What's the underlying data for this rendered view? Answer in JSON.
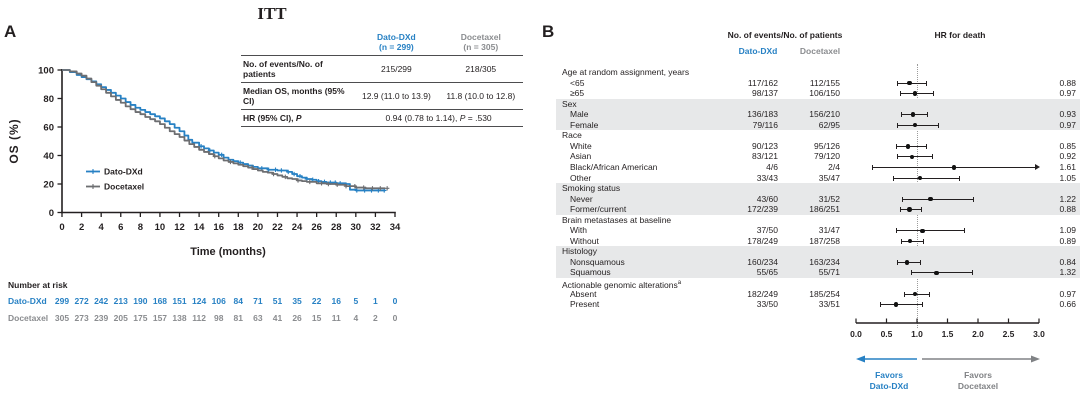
{
  "panel_a": {
    "label": "A",
    "table": {
      "col_headers": [
        {
          "line1": "Dato-DXd",
          "line2": "(n = 299)",
          "color": "#2781c4"
        },
        {
          "line1": "Docetaxel",
          "line2": "(n = 305)",
          "color": "#8a8c8f"
        }
      ],
      "rows": [
        {
          "label": "No. of events/No. of patients",
          "dato": "215/299",
          "doc": "218/305"
        },
        {
          "label": "Median OS, months (95% CI)",
          "dato": "12.9 (11.0 to 13.9)",
          "doc": "11.8 (10.0 to 12.8)"
        },
        {
          "label_prefix": "HR (95% CI), ",
          "label_p": "P",
          "value_prefix": "0.94 (0.78 to 1.14), ",
          "value_p": "P",
          "value_suffix": " = .530"
        }
      ]
    },
    "number_at_risk": {
      "title": "Number at risk",
      "times": [
        0,
        2,
        4,
        6,
        8,
        10,
        12,
        14,
        16,
        18,
        20,
        22,
        24,
        26,
        28,
        30,
        32,
        34
      ],
      "rows": [
        {
          "label": "Dato-DXd",
          "color": "#2781c4",
          "values": [
            299,
            272,
            242,
            213,
            190,
            168,
            151,
            124,
            106,
            84,
            71,
            51,
            35,
            22,
            16,
            5,
            1,
            0
          ]
        },
        {
          "label": "Docetaxel",
          "color": "#8a8c8f",
          "values": [
            305,
            273,
            239,
            205,
            175,
            157,
            138,
            112,
            98,
            81,
            63,
            41,
            26,
            15,
            11,
            4,
            2,
            0
          ]
        }
      ]
    }
  },
  "panel_b": {
    "label": "B",
    "header_events": "No. of events/No. of patients",
    "header_dato": "Dato-DXd",
    "header_doc": "Docetaxel",
    "header_hr": "HR for death",
    "favors_left": {
      "line1": "Favors",
      "line2": "Dato-DXd",
      "color": "#2781c4"
    },
    "favors_right": {
      "line1": "Favors",
      "line2": "Docetaxel",
      "color": "#808285"
    }
  },
  "chart_data": [
    {
      "type": "line",
      "subtype": "kaplan-meier",
      "title": "ITT",
      "xlabel": "Time (months)",
      "ylabel": "OS (%)",
      "xlim": [
        0,
        34
      ],
      "ylim": [
        0,
        100
      ],
      "xticks": [
        0,
        2,
        4,
        6,
        8,
        10,
        12,
        14,
        16,
        18,
        20,
        22,
        24,
        26,
        28,
        30,
        32,
        34
      ],
      "yticks": [
        0,
        20,
        40,
        60,
        80,
        100
      ],
      "legend_position": "inside-left",
      "series": [
        {
          "name": "Dato-DXd",
          "color": "#2781c4",
          "median_os_months": 12.9,
          "points": [
            [
              0,
              100
            ],
            [
              0.8,
              98.5
            ],
            [
              1.5,
              96.5
            ],
            [
              2,
              95
            ],
            [
              2.5,
              93.5
            ],
            [
              3,
              92
            ],
            [
              3.5,
              90
            ],
            [
              4,
              88
            ],
            [
              4.5,
              86
            ],
            [
              5,
              84
            ],
            [
              5.5,
              82
            ],
            [
              6,
              80
            ],
            [
              6.5,
              77.5
            ],
            [
              7,
              75.5
            ],
            [
              7.5,
              73.5
            ],
            [
              8,
              72
            ],
            [
              8.5,
              70.5
            ],
            [
              9,
              69
            ],
            [
              9.5,
              67.5
            ],
            [
              10,
              66
            ],
            [
              10.5,
              64
            ],
            [
              11,
              62
            ],
            [
              11.5,
              59.5
            ],
            [
              12,
              57
            ],
            [
              12.5,
              54
            ],
            [
              12.9,
              51
            ],
            [
              13.3,
              49
            ],
            [
              14,
              46.5
            ],
            [
              14.5,
              45
            ],
            [
              15,
              43.5
            ],
            [
              15.5,
              42
            ],
            [
              16,
              40.5
            ],
            [
              16.5,
              38.5
            ],
            [
              17,
              37
            ],
            [
              17.5,
              36
            ],
            [
              18,
              35
            ],
            [
              18.5,
              34
            ],
            [
              19,
              33
            ],
            [
              19.5,
              32
            ],
            [
              20,
              31
            ],
            [
              21,
              30
            ],
            [
              22,
              29.5
            ],
            [
              23,
              28.5
            ],
            [
              23.5,
              27
            ],
            [
              24,
              25.5
            ],
            [
              24.5,
              24.5
            ],
            [
              25,
              23.5
            ],
            [
              25.5,
              23
            ],
            [
              26,
              22
            ],
            [
              26.5,
              21.5
            ],
            [
              27,
              21
            ],
            [
              28,
              20.5
            ],
            [
              29,
              20
            ],
            [
              29.4,
              16
            ],
            [
              30,
              15.5
            ],
            [
              33,
              15.5
            ]
          ],
          "censor_times": [
            14.2,
            15.1,
            16.3,
            18.2,
            20.4,
            21.1,
            21.8,
            22.4,
            23.1,
            23.7,
            24.3,
            25.0,
            25.6,
            26.2,
            26.8,
            27.4,
            27.9,
            28.4,
            30.1,
            30.9,
            31.6,
            32.3,
            32.9
          ]
        },
        {
          "name": "Docetaxel",
          "color": "#6d6e71",
          "median_os_months": 11.8,
          "points": [
            [
              0,
              100
            ],
            [
              0.8,
              99
            ],
            [
              1.5,
              97.5
            ],
            [
              2,
              96
            ],
            [
              2.5,
              94
            ],
            [
              3,
              91.5
            ],
            [
              3.5,
              89
            ],
            [
              4,
              86.5
            ],
            [
              4.5,
              84
            ],
            [
              5,
              81.5
            ],
            [
              5.5,
              79
            ],
            [
              6,
              77
            ],
            [
              6.5,
              74.5
            ],
            [
              7,
              72.5
            ],
            [
              7.5,
              70.5
            ],
            [
              8,
              69
            ],
            [
              8.5,
              67
            ],
            [
              9,
              65.5
            ],
            [
              9.5,
              64
            ],
            [
              10,
              62
            ],
            [
              10.5,
              59.5
            ],
            [
              11,
              57
            ],
            [
              11.5,
              55
            ],
            [
              12,
              53
            ],
            [
              12.5,
              50.5
            ],
            [
              13,
              48
            ],
            [
              13.5,
              46
            ],
            [
              14,
              44
            ],
            [
              14.5,
              42.5
            ],
            [
              15,
              41
            ],
            [
              15.5,
              39.5
            ],
            [
              16,
              38
            ],
            [
              16.5,
              36.5
            ],
            [
              17,
              35.5
            ],
            [
              17.5,
              34.5
            ],
            [
              18,
              33.5
            ],
            [
              18.5,
              32.5
            ],
            [
              19,
              31.5
            ],
            [
              19.5,
              30.5
            ],
            [
              20,
              29.5
            ],
            [
              20.5,
              28.5
            ],
            [
              21,
              28
            ],
            [
              21.5,
              27
            ],
            [
              22,
              26
            ],
            [
              22.5,
              25
            ],
            [
              23,
              24
            ],
            [
              23.5,
              23.5
            ],
            [
              24,
              22.5
            ],
            [
              24.5,
              22
            ],
            [
              25,
              21.5
            ],
            [
              26,
              20.5
            ],
            [
              27,
              20
            ],
            [
              28,
              19.5
            ],
            [
              29,
              18.5
            ],
            [
              30,
              17.5
            ],
            [
              31,
              17
            ],
            [
              33,
              17
            ]
          ],
          "censor_times": [
            15.6,
            17.2,
            19.4,
            21.6,
            22.8,
            24.1,
            25.3,
            26.5,
            27.2,
            28.1,
            29.0,
            29.9,
            30.8,
            31.7,
            32.5,
            33.2
          ]
        }
      ]
    },
    {
      "type": "forest",
      "axis_label": "HR for death",
      "xticks": [
        "0.0",
        "0.5",
        "1.0",
        "1.5",
        "2.0",
        "2.5",
        "3.0"
      ],
      "xlim": [
        0,
        3
      ],
      "reference_line": 1.0,
      "rows": [
        {
          "label": "Age at random assignment, years",
          "type": "group",
          "shaded": false
        },
        {
          "label": "<65",
          "type": "item",
          "shaded": false,
          "dato": "117/162",
          "doc": "112/155",
          "hr": 0.88,
          "lo": 0.68,
          "hi": 1.14,
          "hr_label": "0.88"
        },
        {
          "label": "≥65",
          "type": "item",
          "shaded": false,
          "dato": "98/137",
          "doc": "106/150",
          "hr": 0.97,
          "lo": 0.72,
          "hi": 1.26,
          "hr_label": "0.97"
        },
        {
          "label": "Sex",
          "type": "group",
          "shaded": true
        },
        {
          "label": "Male",
          "type": "item",
          "shaded": true,
          "dato": "136/183",
          "doc": "156/210",
          "hr": 0.93,
          "lo": 0.73,
          "hi": 1.17,
          "hr_label": "0.93"
        },
        {
          "label": "Female",
          "type": "item",
          "shaded": true,
          "dato": "79/116",
          "doc": "62/95",
          "hr": 0.97,
          "lo": 0.68,
          "hi": 1.35,
          "hr_label": "0.97"
        },
        {
          "label": "Race",
          "type": "group",
          "shaded": false
        },
        {
          "label": "White",
          "type": "item",
          "shaded": false,
          "dato": "90/123",
          "doc": "95/126",
          "hr": 0.85,
          "lo": 0.65,
          "hi": 1.14,
          "hr_label": "0.85"
        },
        {
          "label": "Asian",
          "type": "item",
          "shaded": false,
          "dato": "83/121",
          "doc": "79/120",
          "hr": 0.92,
          "lo": 0.67,
          "hi": 1.25,
          "hr_label": "0.92"
        },
        {
          "label": "Black/African American",
          "type": "item",
          "shaded": false,
          "dato": "4/6",
          "doc": "2/4",
          "hr": 1.61,
          "lo": 0.26,
          "hi": 2.95,
          "arrow_right": true,
          "hr_label": "1.61"
        },
        {
          "label": "Other",
          "type": "item",
          "shaded": false,
          "dato": "33/43",
          "doc": "35/47",
          "hr": 1.05,
          "lo": 0.61,
          "hi": 1.69,
          "hr_label": "1.05"
        },
        {
          "label": "Smoking status",
          "type": "group",
          "shaded": true
        },
        {
          "label": "Never",
          "type": "item",
          "shaded": true,
          "dato": "43/60",
          "doc": "31/52",
          "hr": 1.22,
          "lo": 0.76,
          "hi": 1.92,
          "hr_label": "1.22"
        },
        {
          "label": "Former/current",
          "type": "item",
          "shaded": true,
          "dato": "172/239",
          "doc": "186/251",
          "hr": 0.88,
          "lo": 0.72,
          "hi": 1.07,
          "hr_label": "0.88"
        },
        {
          "label": "Brain metastases at baseline",
          "type": "group",
          "shaded": false
        },
        {
          "label": "With",
          "type": "item",
          "shaded": false,
          "dato": "37/50",
          "doc": "31/47",
          "hr": 1.09,
          "lo": 0.65,
          "hi": 1.77,
          "hr_label": "1.09"
        },
        {
          "label": "Without",
          "type": "item",
          "shaded": false,
          "dato": "178/249",
          "doc": "187/258",
          "hr": 0.89,
          "lo": 0.73,
          "hi": 1.1,
          "hr_label": "0.89"
        },
        {
          "label": "Histology",
          "type": "group",
          "shaded": true
        },
        {
          "label": "Nonsquamous",
          "type": "item",
          "shaded": true,
          "dato": "160/234",
          "doc": "163/234",
          "hr": 0.84,
          "lo": 0.68,
          "hi": 1.05,
          "hr_label": "0.84"
        },
        {
          "label": "Squamous",
          "type": "item",
          "shaded": true,
          "dato": "55/65",
          "doc": "55/71",
          "hr": 1.32,
          "lo": 0.9,
          "hi": 1.9,
          "hr_label": "1.32"
        },
        {
          "label": "Actionable genomic alterations",
          "sup": "a",
          "type": "group",
          "shaded": false
        },
        {
          "label": "Absent",
          "type": "item",
          "shaded": false,
          "dato": "182/249",
          "doc": "185/254",
          "hr": 0.97,
          "lo": 0.78,
          "hi": 1.19,
          "hr_label": "0.97"
        },
        {
          "label": "Present",
          "type": "item",
          "shaded": false,
          "dato": "33/50",
          "doc": "33/51",
          "hr": 0.66,
          "lo": 0.4,
          "hi": 1.08,
          "hr_label": "0.66"
        }
      ]
    }
  ]
}
